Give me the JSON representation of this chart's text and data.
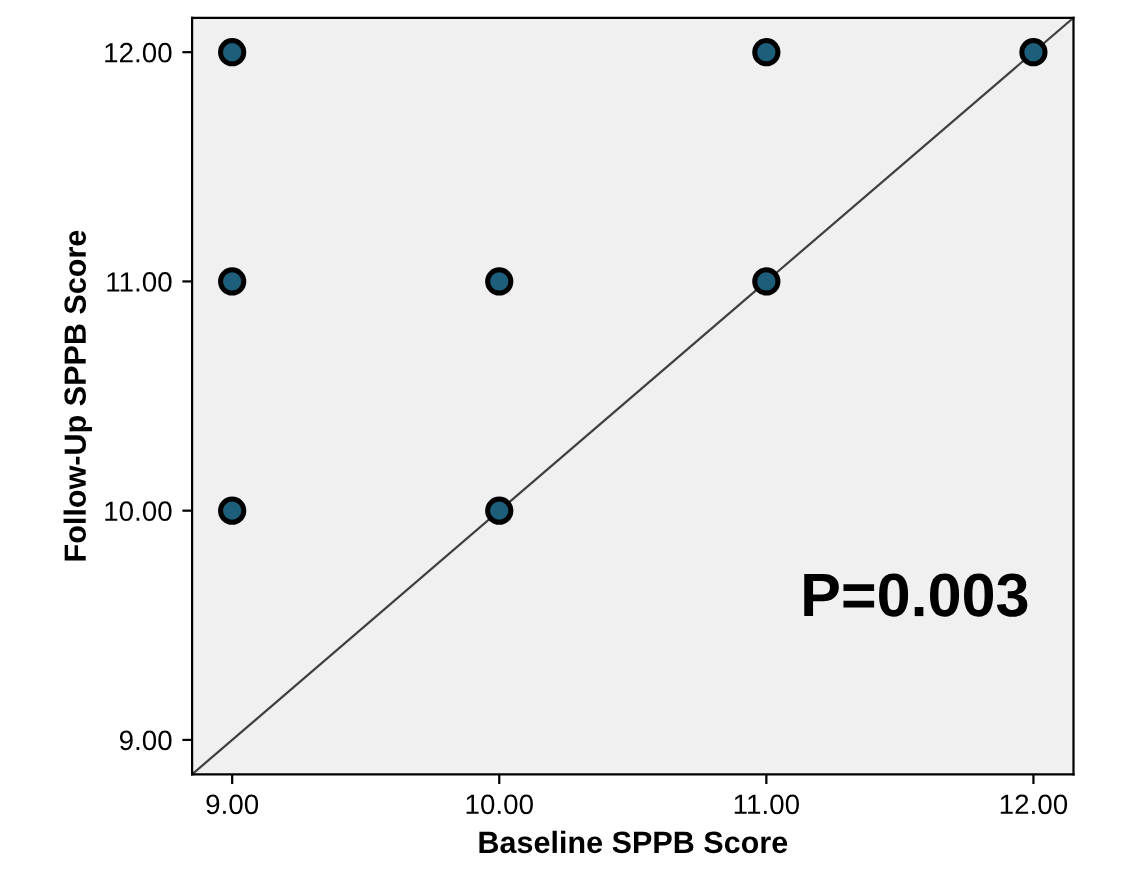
{
  "chart_data": {
    "type": "scatter",
    "xlabel": "Baseline SPPB Score",
    "ylabel": "Follow-Up SPPB Score",
    "series": [
      {
        "color": "#1d5e7a",
        "marker": "circle",
        "x": [
          9,
          9,
          9,
          10,
          10,
          11,
          11,
          12
        ],
        "values": [
          12,
          11,
          10,
          11,
          10,
          12,
          11,
          12
        ]
      },
      {
        "type": "line",
        "color": "#404040",
        "x": [
          8.85,
          12.15
        ],
        "values": [
          8.85,
          12.15
        ]
      }
    ],
    "xlim": [
      8.85,
      12.15
    ],
    "ylim": [
      8.85,
      12.15
    ],
    "xticks": [
      {
        "value": 9,
        "label": "9.00"
      },
      {
        "value": 10,
        "label": "10.00"
      },
      {
        "value": 11,
        "label": "11.00"
      },
      {
        "value": 12,
        "label": "12.00"
      }
    ],
    "yticks": [
      {
        "value": 9,
        "label": "9.00"
      },
      {
        "value": 10,
        "label": "10.00"
      },
      {
        "value": 11,
        "label": "11.00"
      },
      {
        "value": 12,
        "label": "12.00"
      }
    ],
    "grid": false,
    "legend": false,
    "annotations": [
      "P=0.003"
    ]
  }
}
